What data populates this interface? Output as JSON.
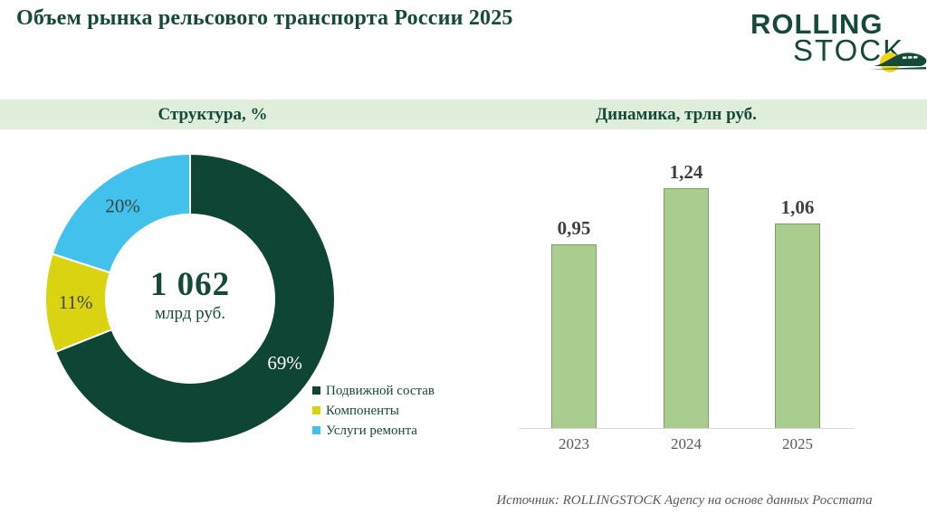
{
  "page": {
    "title": "Объем рынка рельсового транспорта России 2025",
    "source_note": "Источник: ROLLINGSTOCK Agency на основе данных Росстата"
  },
  "logo": {
    "line1": "ROLLING",
    "line2": "STOCK",
    "brand_color": "#15493a",
    "sun_color": "#f0d41c"
  },
  "sections": {
    "structure_header": "Структура, %",
    "dynamics_header": "Динамика, трлн руб."
  },
  "colors": {
    "band_green": "#dfeeda",
    "brand_green": "#15493a",
    "axis_line": "#d9d9d9"
  },
  "chart_data": [
    {
      "type": "pie",
      "subtype": "donut",
      "title": "Структура, %",
      "center_value": "1 062",
      "center_unit": "млрд руб.",
      "start_angle_deg": 0,
      "direction": "clockwise",
      "slices": [
        {
          "label": "Подвижной состав",
          "value": 69,
          "display": "69%",
          "color": "#0f4534",
          "label_color": "#ffffff"
        },
        {
          "label": "Компоненты",
          "value": 11,
          "display": "11%",
          "color": "#d9d312",
          "label_color": "#3c443c"
        },
        {
          "label": "Услуги ремонта",
          "value": 20,
          "display": "20%",
          "color": "#41c1ec",
          "label_color": "#3c443c"
        }
      ],
      "legend_position": "right"
    },
    {
      "type": "bar",
      "title": "Динамика, трлн руб.",
      "categories": [
        "2023",
        "2024",
        "2025"
      ],
      "values": [
        0.95,
        1.24,
        1.06
      ],
      "value_labels": [
        "0,95",
        "1,24",
        "1,06"
      ],
      "bar_color": "#a8cd8e",
      "bar_border": "#7d9f63",
      "ylim": [
        0,
        1.4
      ],
      "grid": false,
      "legend": false
    }
  ]
}
